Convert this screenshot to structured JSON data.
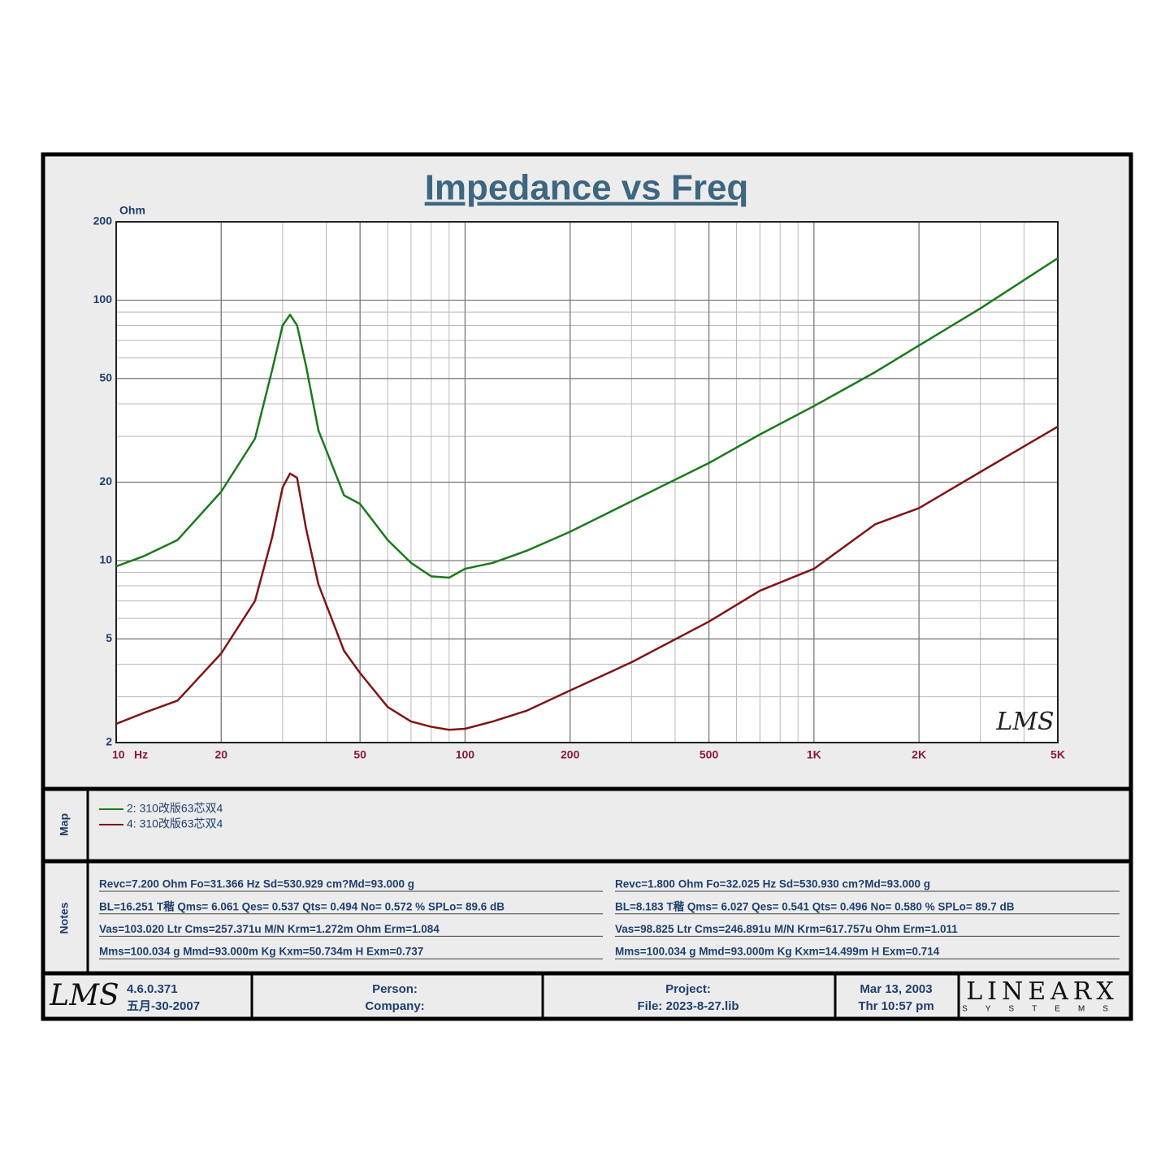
{
  "chart_data": {
    "type": "line",
    "title": "Impedance vs Freq",
    "ylabel": "Ohm",
    "xlabel": "Hz",
    "watermark": "LMS",
    "xscale": "log",
    "yscale": "log",
    "grid": true,
    "minor_grid": true,
    "xlim": [
      10,
      5000
    ],
    "ylim": [
      2,
      200
    ],
    "xticks": [
      10,
      20,
      50,
      100,
      200,
      500,
      {
        "value": 1000,
        "label": "1K"
      },
      {
        "value": 2000,
        "label": "2K"
      },
      {
        "value": 5000,
        "label": "5K"
      }
    ],
    "yticks": [
      2,
      5,
      10,
      20,
      50,
      100,
      200
    ],
    "x": [
      10,
      12,
      15,
      20,
      25,
      28,
      30,
      31.5,
      33,
      35,
      38,
      45,
      50,
      60,
      70,
      80,
      90,
      100,
      120,
      150,
      200,
      300,
      500,
      700,
      1000,
      1500,
      2000,
      3000,
      5000
    ],
    "series": [
      {
        "name": "2: 310改版63芯双4",
        "color": "#1a7a1a",
        "values": [
          9.5,
          10.4,
          12,
          18.4,
          29.4,
          54,
          80,
          88,
          80,
          56,
          31.6,
          17.8,
          16.5,
          12,
          9.8,
          8.7,
          8.6,
          9.3,
          9.8,
          10.9,
          12.9,
          16.9,
          23.7,
          30.5,
          39.2,
          53,
          67,
          93,
          145
        ]
      },
      {
        "name": "4: 310改版63芯双4",
        "color": "#7f1515",
        "values": [
          2.36,
          2.6,
          2.9,
          4.4,
          7,
          12.3,
          19.1,
          21.6,
          20.8,
          13.3,
          8.1,
          4.5,
          3.7,
          2.74,
          2.41,
          2.3,
          2.24,
          2.26,
          2.41,
          2.65,
          3.17,
          4.07,
          5.83,
          7.66,
          9.3,
          13.8,
          15.9,
          21.9,
          32.7
        ]
      }
    ]
  },
  "map_label": "Map",
  "notes_label": "Notes",
  "notes": {
    "left": [
      "Revc=7.200 Ohm  Fo=31.366 Hz  Sd=530.929 cm?Md=93.000 g",
      "BL=16.251 T稭  Qms= 6.061  Qes= 0.537  Qts= 0.494  No= 0.572 %  SPLo= 89.6 dB",
      "Vas=103.020 Ltr  Cms=257.371u M/N  Krm=1.272m Ohm  Erm=1.084",
      "Mms=100.034 g  Mmd=93.000m Kg  Kxm=50.734m H  Exm=0.737"
    ],
    "right": [
      "Revc=1.800 Ohm  Fo=32.025 Hz  Sd=530.930 cm?Md=93.000 g",
      "BL=8.183 T稭  Qms= 6.027  Qes= 0.541  Qts= 0.496  No= 0.580 %  SPLo= 89.7 dB",
      "Vas=98.825 Ltr  Cms=246.891u M/N  Krm=617.757u Ohm  Erm=1.011",
      "Mms=100.034 g  Mmd=93.000m Kg  Kxm=14.499m H  Exm=0.714"
    ]
  },
  "footer": {
    "logo": "LMS",
    "version": "4.6.0.371",
    "build_date": "五月-30-2007",
    "person": "Person:",
    "company": "Company:",
    "project": "Project:",
    "file": "File: 2023-8-27.lib",
    "date": "Mar 13, 2003",
    "time": "Thr 10:57 pm",
    "brand": "LINEARX",
    "brand_sub": "SYSTEMS"
  }
}
